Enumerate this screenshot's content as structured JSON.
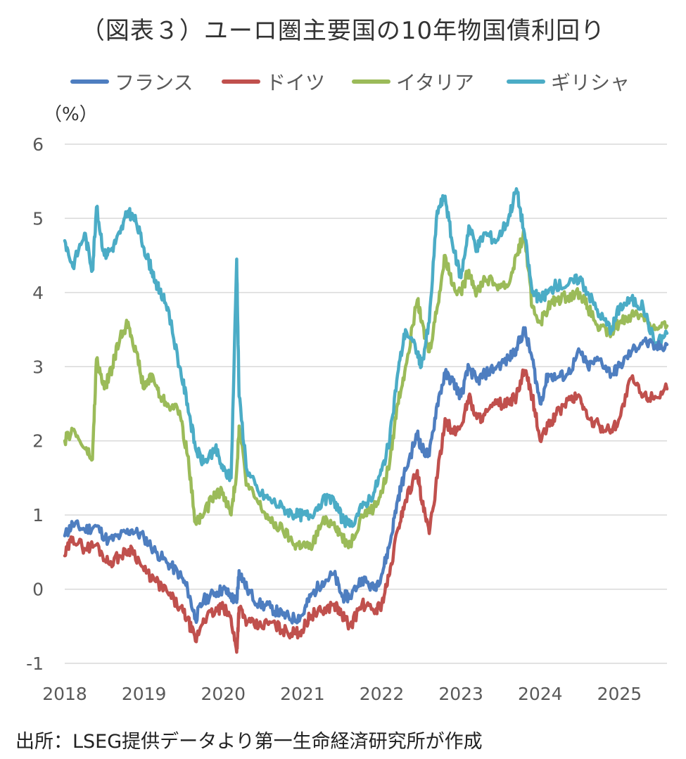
{
  "title": "（図表３）ユーロ圏主要国の10年物国債利回り",
  "unit_label": "（%）",
  "source": "出所：LSEG提供データより第一生命経済研究所が作成",
  "chart_data": {
    "type": "line",
    "title": "（図表３）ユーロ圏主要国の10年物国債利回り",
    "ylabel": "（%）",
    "ylim": [
      -1,
      6
    ],
    "yticks": [
      "6",
      "5",
      "4",
      "3",
      "2",
      "1",
      "0",
      "-1"
    ],
    "xlim": [
      2018.0,
      2025.6
    ],
    "xticks": [
      "2018",
      "2019",
      "2020",
      "2021",
      "2022",
      "2023",
      "2024",
      "2025"
    ],
    "grid": true,
    "legend_position": "top",
    "series": [
      {
        "name": "フランス",
        "color": "#4E7EC0",
        "x": [
          2018.0,
          2018.1,
          2018.25,
          2018.4,
          2018.55,
          2018.7,
          2018.85,
          2019.0,
          2019.15,
          2019.3,
          2019.45,
          2019.55,
          2019.65,
          2019.75,
          2019.9,
          2020.0,
          2020.1,
          2020.17,
          2020.2,
          2020.3,
          2020.45,
          2020.6,
          2020.75,
          2020.9,
          2021.0,
          2021.1,
          2021.25,
          2021.4,
          2021.5,
          2021.6,
          2021.75,
          2021.9,
          2022.0,
          2022.1,
          2022.2,
          2022.3,
          2022.45,
          2022.5,
          2022.6,
          2022.7,
          2022.8,
          2022.9,
          2023.0,
          2023.1,
          2023.2,
          2023.3,
          2023.45,
          2023.6,
          2023.7,
          2023.8,
          2023.9,
          2024.0,
          2024.1,
          2024.2,
          2024.35,
          2024.5,
          2024.6,
          2024.75,
          2024.9,
          2025.0,
          2025.15,
          2025.3,
          2025.45,
          2025.6
        ],
        "values": [
          0.72,
          0.88,
          0.8,
          0.85,
          0.65,
          0.72,
          0.8,
          0.7,
          0.5,
          0.35,
          0.2,
          0.0,
          -0.4,
          -0.15,
          -0.05,
          0.0,
          -0.1,
          -0.18,
          0.25,
          0.0,
          -0.2,
          -0.25,
          -0.35,
          -0.4,
          -0.35,
          -0.1,
          0.1,
          0.2,
          -0.1,
          -0.1,
          0.15,
          0.0,
          0.2,
          0.6,
          1.2,
          1.6,
          2.1,
          1.9,
          1.8,
          2.5,
          2.9,
          2.8,
          2.6,
          3.0,
          2.8,
          2.9,
          3.0,
          3.1,
          3.25,
          3.5,
          3.1,
          2.5,
          2.9,
          2.85,
          2.9,
          3.2,
          3.0,
          3.1,
          2.9,
          3.0,
          3.2,
          3.35,
          3.25,
          3.3
        ]
      },
      {
        "name": "ドイツ",
        "color": "#C0504D",
        "x": [
          2018.0,
          2018.1,
          2018.25,
          2018.4,
          2018.55,
          2018.7,
          2018.85,
          2019.0,
          2019.15,
          2019.3,
          2019.45,
          2019.55,
          2019.65,
          2019.75,
          2019.9,
          2020.0,
          2020.1,
          2020.17,
          2020.2,
          2020.3,
          2020.45,
          2020.6,
          2020.75,
          2020.9,
          2021.0,
          2021.1,
          2021.25,
          2021.4,
          2021.5,
          2021.6,
          2021.75,
          2021.9,
          2022.0,
          2022.1,
          2022.2,
          2022.3,
          2022.45,
          2022.5,
          2022.6,
          2022.7,
          2022.8,
          2022.9,
          2023.0,
          2023.1,
          2023.2,
          2023.3,
          2023.45,
          2023.6,
          2023.7,
          2023.8,
          2023.9,
          2024.0,
          2024.1,
          2024.2,
          2024.35,
          2024.5,
          2024.6,
          2024.75,
          2024.9,
          2025.0,
          2025.15,
          2025.3,
          2025.45,
          2025.6
        ],
        "values": [
          0.45,
          0.7,
          0.55,
          0.6,
          0.35,
          0.45,
          0.55,
          0.25,
          0.1,
          -0.05,
          -0.25,
          -0.4,
          -0.7,
          -0.4,
          -0.3,
          -0.25,
          -0.4,
          -0.85,
          -0.25,
          -0.45,
          -0.5,
          -0.45,
          -0.55,
          -0.6,
          -0.55,
          -0.35,
          -0.3,
          -0.2,
          -0.35,
          -0.5,
          -0.2,
          -0.3,
          -0.2,
          0.2,
          0.8,
          1.2,
          1.6,
          1.2,
          0.75,
          1.5,
          2.3,
          2.1,
          2.2,
          2.6,
          2.3,
          2.35,
          2.5,
          2.5,
          2.6,
          2.95,
          2.6,
          2.0,
          2.2,
          2.35,
          2.55,
          2.6,
          2.3,
          2.2,
          2.15,
          2.3,
          2.85,
          2.6,
          2.6,
          2.7
        ]
      },
      {
        "name": "イタリア",
        "color": "#9BBB59",
        "x": [
          2018.0,
          2018.1,
          2018.25,
          2018.35,
          2018.4,
          2018.5,
          2018.6,
          2018.7,
          2018.8,
          2018.9,
          2019.0,
          2019.1,
          2019.2,
          2019.3,
          2019.45,
          2019.55,
          2019.65,
          2019.75,
          2019.9,
          2020.0,
          2020.1,
          2020.17,
          2020.2,
          2020.3,
          2020.45,
          2020.6,
          2020.75,
          2020.9,
          2021.0,
          2021.1,
          2021.25,
          2021.4,
          2021.5,
          2021.6,
          2021.75,
          2021.9,
          2022.0,
          2022.1,
          2022.2,
          2022.3,
          2022.45,
          2022.5,
          2022.6,
          2022.7,
          2022.8,
          2022.9,
          2023.0,
          2023.1,
          2023.2,
          2023.3,
          2023.45,
          2023.6,
          2023.7,
          2023.8,
          2023.9,
          2024.0,
          2024.1,
          2024.2,
          2024.35,
          2024.5,
          2024.6,
          2024.75,
          2024.9,
          2025.0,
          2025.15,
          2025.3,
          2025.45,
          2025.6
        ],
        "values": [
          2.0,
          2.15,
          1.9,
          1.75,
          3.1,
          2.7,
          3.0,
          3.4,
          3.6,
          3.2,
          2.7,
          2.9,
          2.6,
          2.5,
          2.4,
          1.8,
          0.9,
          1.0,
          1.3,
          1.3,
          1.0,
          1.6,
          2.2,
          1.4,
          1.15,
          0.9,
          0.8,
          0.6,
          0.6,
          0.55,
          0.9,
          0.9,
          0.7,
          0.6,
          1.0,
          1.1,
          1.3,
          1.7,
          2.5,
          3.0,
          3.9,
          3.6,
          3.2,
          3.8,
          4.5,
          4.1,
          4.0,
          4.3,
          4.0,
          4.2,
          4.1,
          4.1,
          4.5,
          4.8,
          3.8,
          3.6,
          3.8,
          3.9,
          3.95,
          4.0,
          3.8,
          3.5,
          3.45,
          3.6,
          3.7,
          3.7,
          3.5,
          3.55
        ]
      },
      {
        "name": "ギリシャ",
        "color": "#4BACC6",
        "x": [
          2018.0,
          2018.1,
          2018.25,
          2018.35,
          2018.4,
          2018.5,
          2018.6,
          2018.7,
          2018.8,
          2018.9,
          2019.0,
          2019.1,
          2019.2,
          2019.3,
          2019.45,
          2019.55,
          2019.65,
          2019.75,
          2019.9,
          2020.0,
          2020.1,
          2020.17,
          2020.2,
          2020.3,
          2020.45,
          2020.6,
          2020.75,
          2020.9,
          2021.0,
          2021.1,
          2021.25,
          2021.4,
          2021.5,
          2021.6,
          2021.75,
          2021.9,
          2022.0,
          2022.1,
          2022.2,
          2022.3,
          2022.45,
          2022.5,
          2022.6,
          2022.7,
          2022.8,
          2022.9,
          2023.0,
          2023.1,
          2023.2,
          2023.3,
          2023.45,
          2023.6,
          2023.7,
          2023.8,
          2023.9,
          2024.0,
          2024.1,
          2024.2,
          2024.35,
          2024.5,
          2024.6,
          2024.75,
          2024.9,
          2025.0,
          2025.15,
          2025.3,
          2025.45,
          2025.6
        ],
        "values": [
          4.7,
          4.35,
          4.8,
          4.3,
          5.15,
          4.5,
          4.6,
          4.8,
          5.1,
          4.95,
          4.6,
          4.3,
          4.0,
          3.8,
          3.0,
          2.5,
          1.9,
          1.7,
          1.9,
          1.6,
          1.5,
          4.45,
          2.6,
          1.6,
          1.3,
          1.2,
          1.1,
          1.0,
          1.0,
          1.0,
          1.2,
          1.2,
          0.95,
          0.85,
          1.1,
          1.3,
          1.6,
          2.0,
          2.9,
          3.5,
          3.2,
          3.0,
          3.6,
          5.1,
          5.3,
          4.6,
          4.2,
          4.9,
          4.6,
          4.8,
          4.7,
          5.0,
          5.4,
          4.8,
          4.0,
          3.9,
          4.0,
          4.1,
          4.1,
          4.2,
          4.0,
          3.7,
          3.5,
          3.8,
          3.9,
          3.8,
          3.3,
          3.45
        ]
      }
    ]
  }
}
